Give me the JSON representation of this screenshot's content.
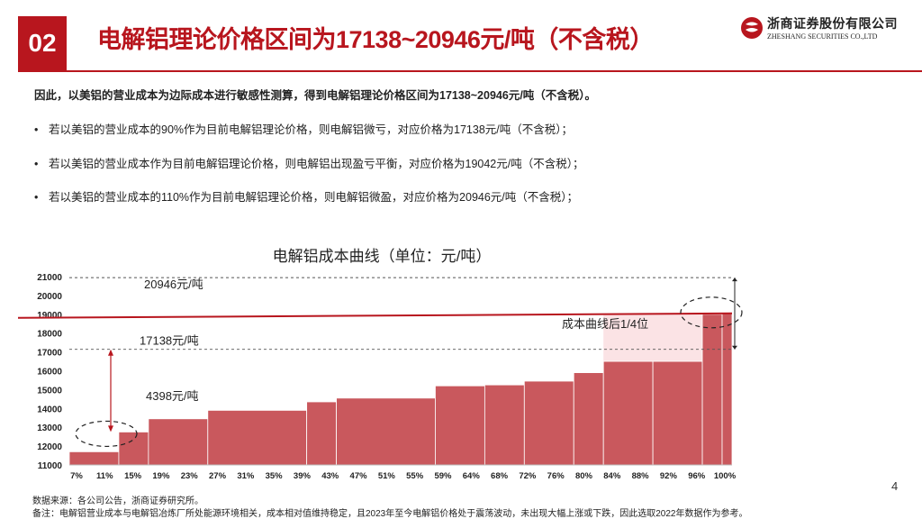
{
  "header": {
    "badge": "02",
    "title": "电解铝理论价格区间为17138~20946元/吨（不含税）",
    "logo_cn": "浙商证券股份有限公司",
    "logo_en": "ZHESHANG SECURITIES CO.,LTD",
    "accent_color": "#b8161e"
  },
  "body": {
    "lead": "因此，以美铝的营业成本为边际成本进行敏感性测算，得到电解铝理论价格区间为17138~20946元/吨（不含税）。",
    "bullets": [
      "若以美铝的营业成本的90%作为目前电解铝理论价格，则电解铝微亏，对应价格为17138元/吨（不含税）；",
      "若以美铝的营业成本作为目前电解铝理论价格，则电解铝出现盈亏平衡，对应价格为19042元/吨（不含税）；",
      "若以美铝的营业成本的110%作为目前电解铝理论价格，则电解铝微盈，对应价格为20946元/吨（不含税）；"
    ],
    "bullet_marker": "•"
  },
  "chart_data": {
    "type": "bar",
    "title": "电解铝成本曲线（单位：元/吨）",
    "xlabel": "",
    "ylabel": "",
    "ylim": [
      11000,
      21000
    ],
    "yticks": [
      "11000",
      "12000",
      "13000",
      "14000",
      "15000",
      "16000",
      "17000",
      "18000",
      "19000",
      "20000",
      "21000"
    ],
    "categories": [
      "7%",
      "11%",
      "15%",
      "19%",
      "23%",
      "27%",
      "31%",
      "35%",
      "39%",
      "43%",
      "47%",
      "51%",
      "55%",
      "59%",
      "64%",
      "68%",
      "72%",
      "76%",
      "80%",
      "84%",
      "88%",
      "92%",
      "96%",
      "100%"
    ],
    "bars": [
      {
        "start": 0,
        "end": 5,
        "value": 11700
      },
      {
        "start": 5,
        "end": 8,
        "value": 12750
      },
      {
        "start": 8,
        "end": 14,
        "value": 13450
      },
      {
        "start": 14,
        "end": 24,
        "value": 13900
      },
      {
        "start": 24,
        "end": 27,
        "value": 14350
      },
      {
        "start": 27,
        "end": 37,
        "value": 14550
      },
      {
        "start": 37,
        "end": 42,
        "value": 15200
      },
      {
        "start": 42,
        "end": 46,
        "value": 15250
      },
      {
        "start": 46,
        "end": 51,
        "value": 15450
      },
      {
        "start": 51,
        "end": 54,
        "value": 15900
      },
      {
        "start": 54,
        "end": 59,
        "value": 16500
      },
      {
        "start": 59,
        "end": 64,
        "value": 16500
      },
      {
        "start": 64,
        "end": 66,
        "value": 19000
      },
      {
        "start": 66,
        "end": 67,
        "value": 19050
      }
    ],
    "x_span": 67,
    "breakeven_line": 19000,
    "reference_lines": [
      20946,
      17138
    ],
    "labels": {
      "upper": "20946元/吨",
      "lower": "17138元/吨",
      "gap": "4398元/吨",
      "quartile": "成本曲线后1/4位"
    },
    "bar_color": "#c9585d",
    "line_color": "#b8161e",
    "highlight_color": "#fbe3e5"
  },
  "footer": {
    "page": "4",
    "source": "数据来源：各公司公告，浙商证券研究所。",
    "note": "备注：电解铝营业成本与电解铝冶炼厂所处能源环境相关，成本相对值维持稳定，且2023年至今电解铝价格处于震荡波动，未出现大幅上涨或下跌，因此选取2022年数据作为参考。"
  }
}
